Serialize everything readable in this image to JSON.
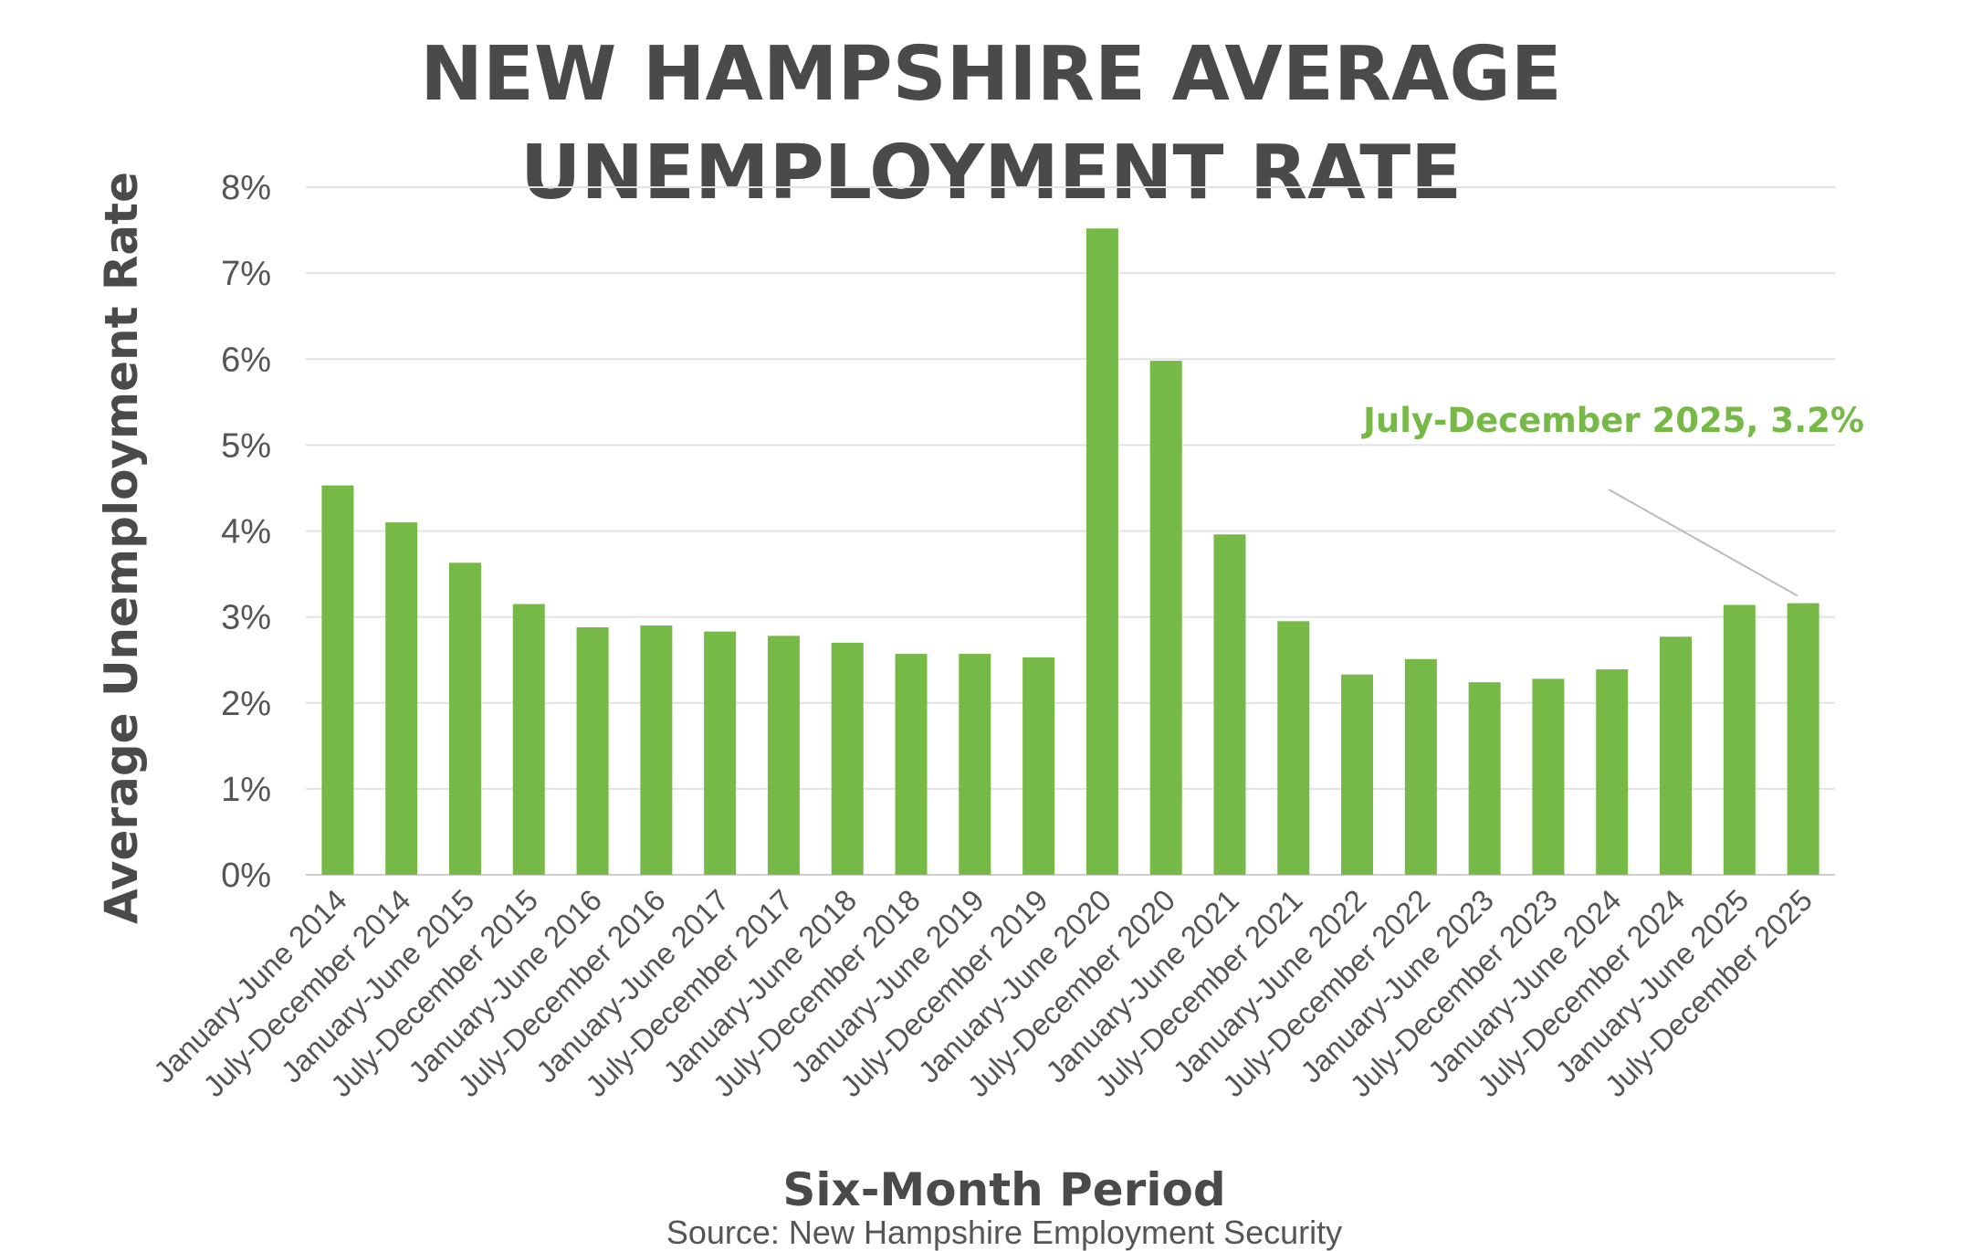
{
  "chart_data": {
    "type": "bar",
    "title_lines": [
      "NEW HAMPSHIRE AVERAGE",
      "UNEMPLOYMENT RATE"
    ],
    "xlabel": "Six-Month Period",
    "ylabel": "Average Unemployment Rate",
    "source": "Source: New Hampshire Employment Security",
    "ylim": [
      0,
      8
    ],
    "yticks": [
      0,
      1,
      2,
      3,
      4,
      5,
      6,
      7,
      8
    ],
    "ytick_suffix": "%",
    "grid": true,
    "bar_color": "#76b947",
    "categories": [
      "January-June 2014",
      "July-December 2014",
      "January-June 2015",
      "July-December 2015",
      "January-June 2016",
      "July-December 2016",
      "January-June 2017",
      "July-December 2017",
      "January-June 2018",
      "July-December 2018",
      "January-June 2019",
      "July-December 2019",
      "January-June 2020",
      "July-December 2020",
      "January-June 2021",
      "July-December 2021",
      "January-June 2022",
      "July-December 2022",
      "January-June 2023",
      "July-December 2023",
      "January-June 2024",
      "July-December 2024",
      "January-June 2025",
      "July-December 2025"
    ],
    "values": [
      4.53,
      4.1,
      3.63,
      3.15,
      2.88,
      2.9,
      2.83,
      2.78,
      2.7,
      2.57,
      2.57,
      2.53,
      7.52,
      5.98,
      3.96,
      2.95,
      2.33,
      2.51,
      2.24,
      2.28,
      2.39,
      2.77,
      3.14,
      3.16
    ],
    "annotation": {
      "text": "July-December 2025, 3.2%",
      "target_index": 23,
      "color": "#76b947"
    }
  }
}
